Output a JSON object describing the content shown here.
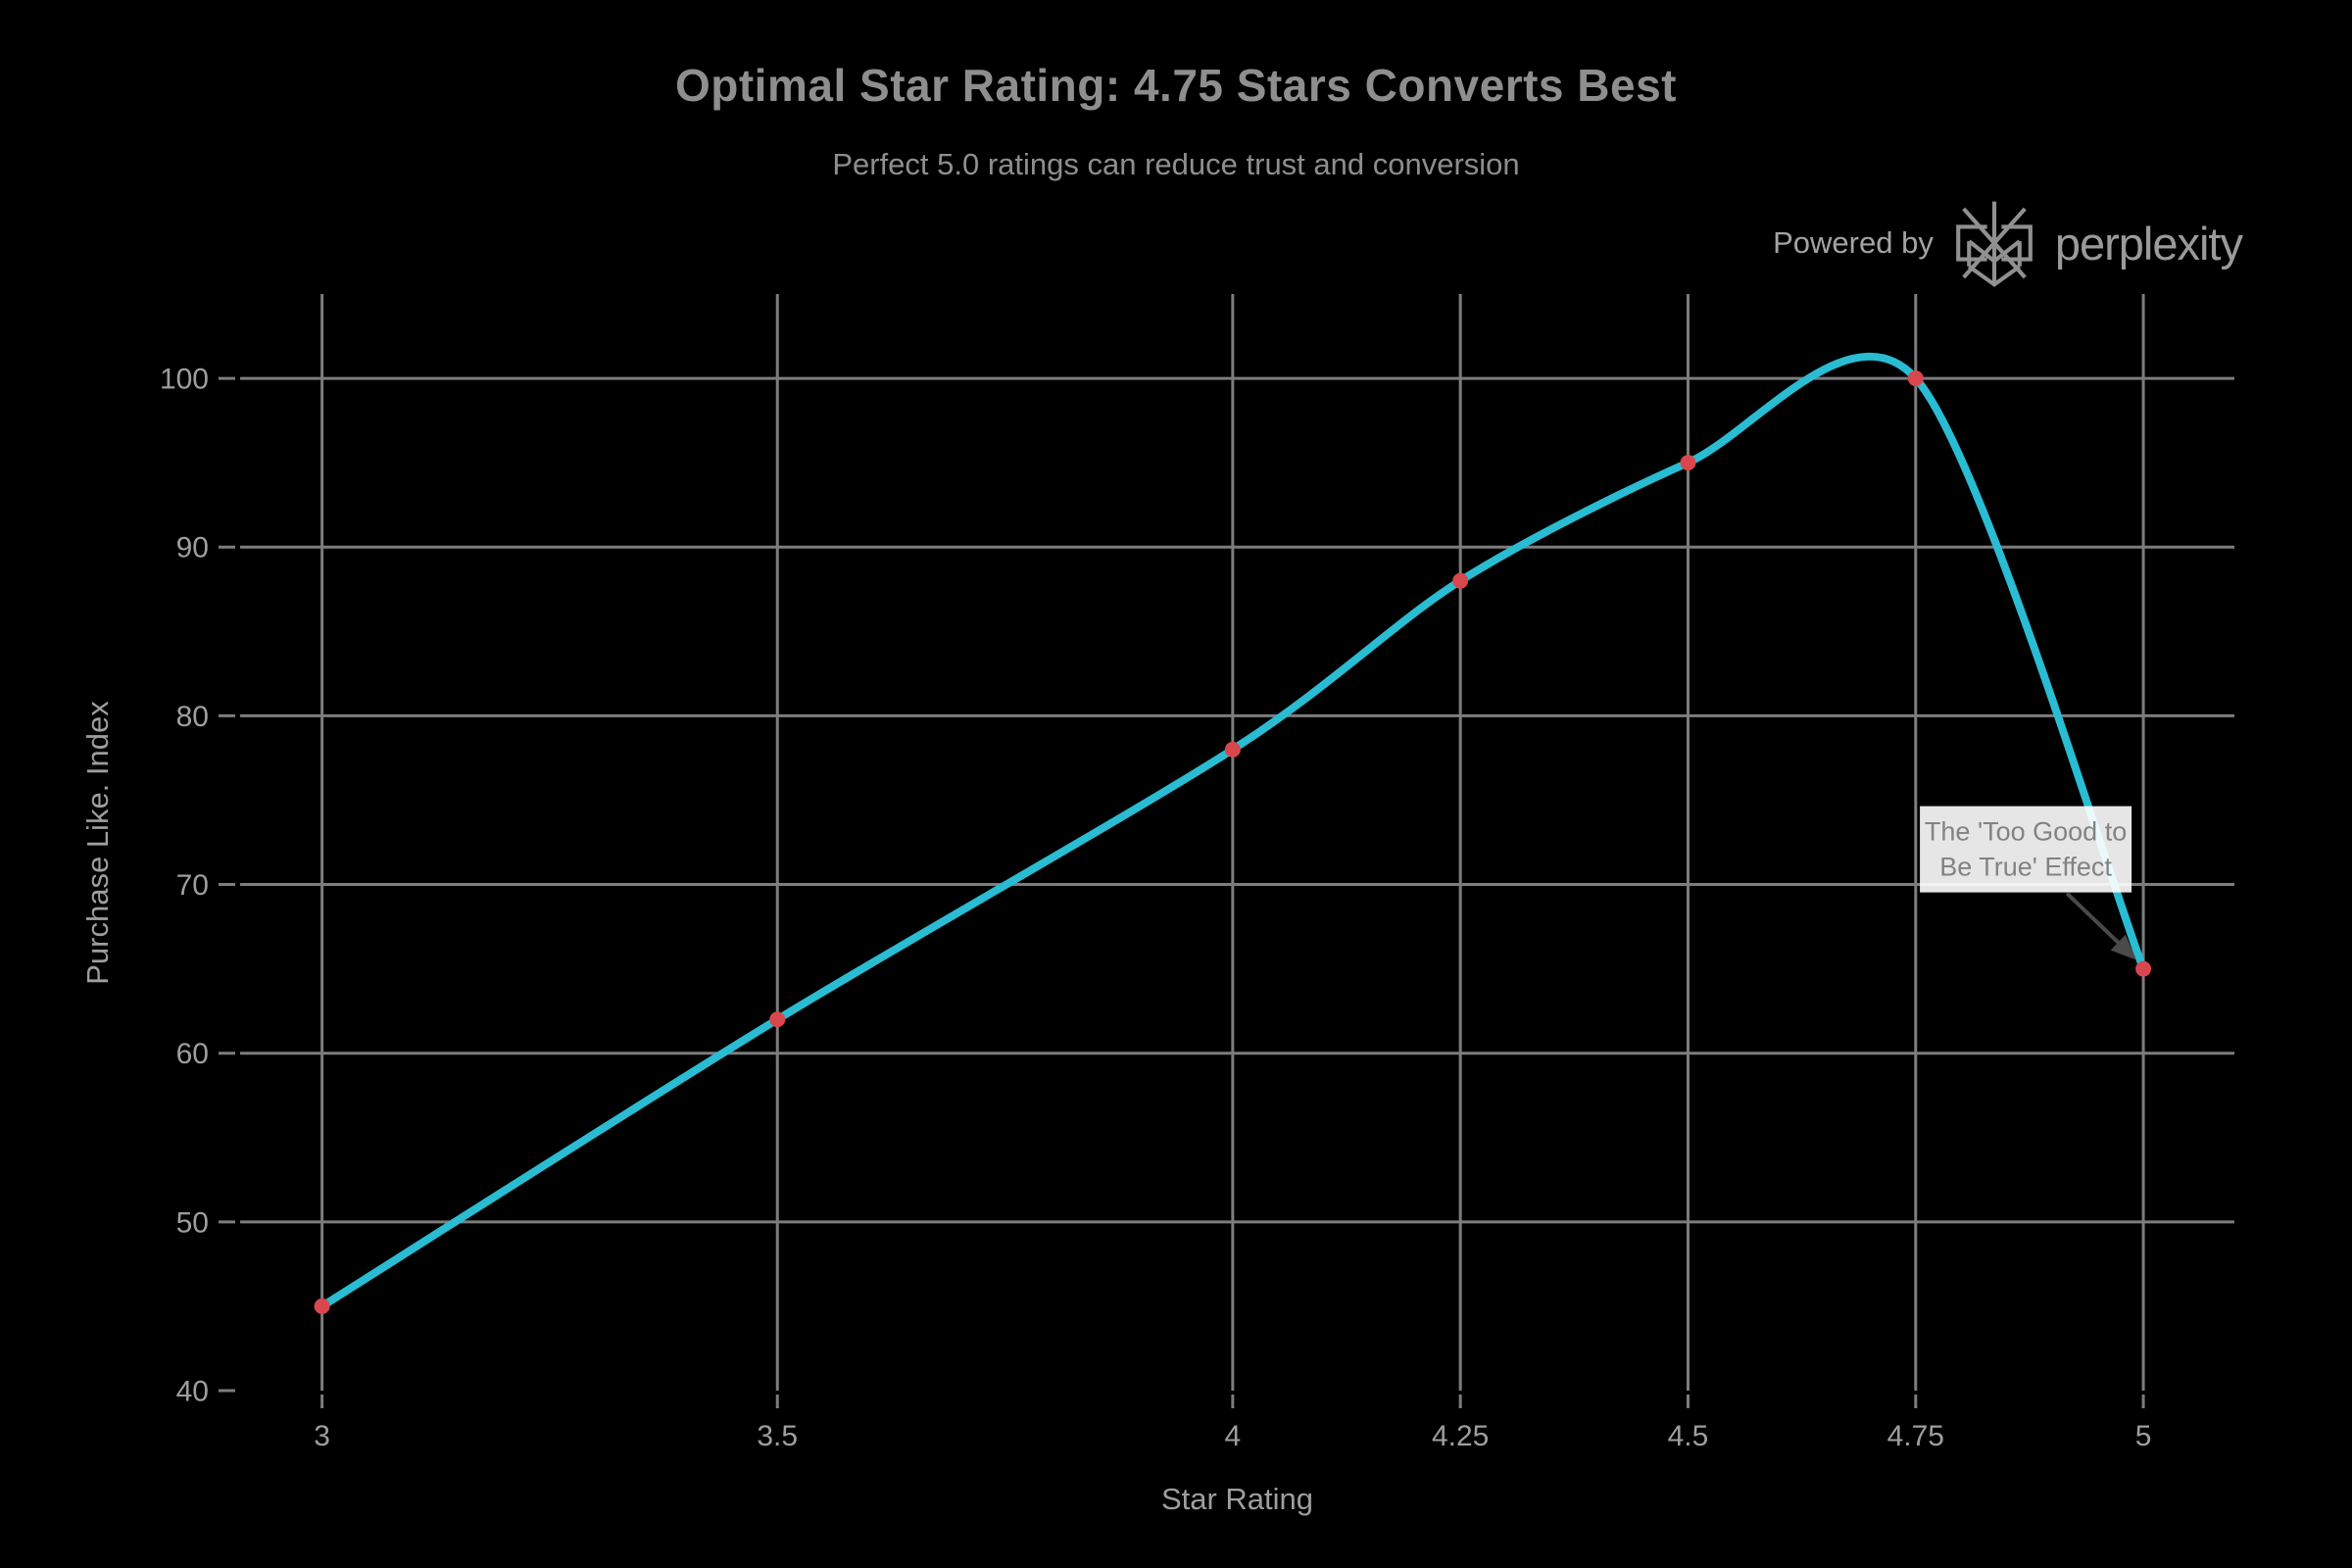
{
  "header": {
    "title": "Optimal Star Rating: 4.75 Stars Converts Best",
    "subtitle": "Perfect 5.0 ratings can reduce trust and conversion",
    "powered_by_label": "Powered by",
    "brand_name": "perplexity",
    "brand_logo_icon": "perplexity-asterisk-icon"
  },
  "chart_data": {
    "type": "line",
    "title": "Optimal Star Rating: 4.75 Stars Converts Best",
    "subtitle": "Perfect 5.0 ratings can reduce trust and conversion",
    "xlabel": "Star Rating",
    "ylabel": "Purchase Like. Index",
    "x": [
      3,
      3.5,
      4,
      4.25,
      4.5,
      4.75,
      5
    ],
    "y": [
      45,
      62,
      78,
      88,
      95,
      100,
      65
    ],
    "x_ticks": [
      3,
      3.5,
      4,
      4.25,
      4.5,
      4.75,
      5
    ],
    "y_ticks": [
      40,
      50,
      60,
      70,
      80,
      90,
      100
    ],
    "xlim": [
      2.91,
      5.1
    ],
    "ylim": [
      40,
      105
    ],
    "grid": true,
    "legend": "none",
    "line_shape": "spline",
    "annotation": {
      "text_lines": [
        "The 'Too Good to",
        "Be True' Effect"
      ],
      "target_x": 5,
      "target_y": 65
    },
    "colors": {
      "background": "#000000",
      "line": "#29bcd2",
      "marker": "#d9474e",
      "grid": "#7d7d7d",
      "tick_label": "#9e9e9e",
      "title_text": "#8e8e8e",
      "annotation_text": "#838383",
      "annotation_box": "#ffffff",
      "annotation_arrow": "#4a4a4a"
    }
  }
}
